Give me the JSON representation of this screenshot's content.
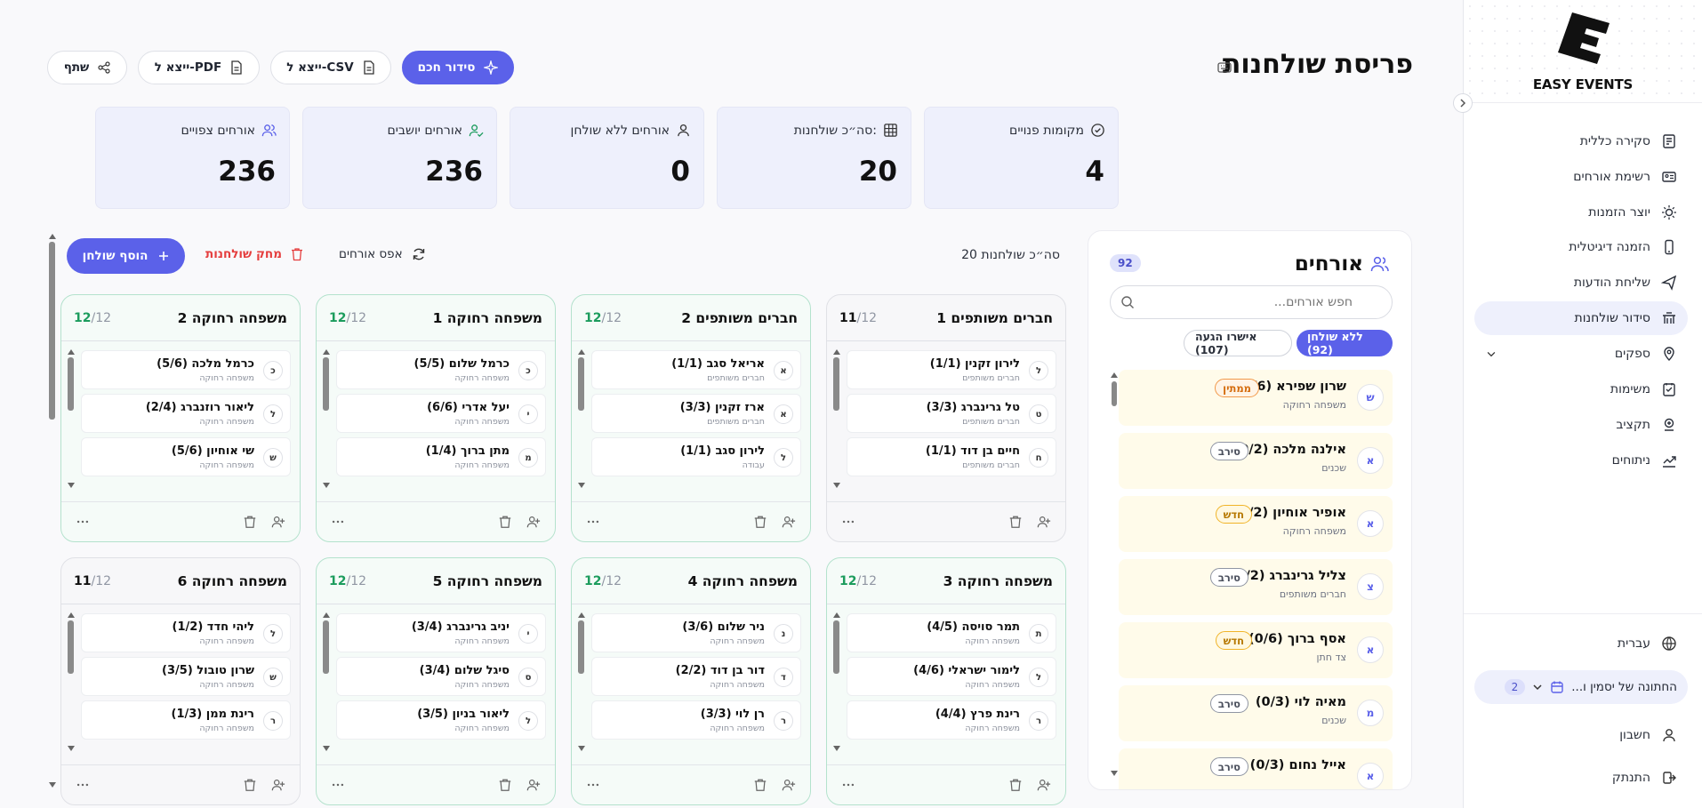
{
  "sidebar": {
    "logo_text": "EASY EVENTS",
    "nav": [
      {
        "label": "סקירה כללית",
        "icon": "dashboard-icon"
      },
      {
        "label": "רשימת אורחים",
        "icon": "guest-list-icon"
      },
      {
        "label": "יוצר הזמנות",
        "icon": "invitation-creator-icon"
      },
      {
        "label": "הזמנה דיגיטלית",
        "icon": "phone-icon"
      },
      {
        "label": "שליחת הודעות",
        "icon": "send-icon"
      },
      {
        "label": "סידור שולחנות",
        "icon": "seating-icon",
        "active": true
      },
      {
        "label": "ספקים",
        "icon": "location-pin-icon",
        "expandable": true
      },
      {
        "label": "משימות",
        "icon": "tasks-icon"
      },
      {
        "label": "תקציב",
        "icon": "budget-icon"
      },
      {
        "label": "ניתוחים",
        "icon": "analytics-icon"
      }
    ],
    "language": "עברית",
    "event_name": "החתונה של יסמין ו...",
    "event_count": "2",
    "account": "חשבון",
    "logout": "התנתק"
  },
  "header": {
    "title": "פריסת שולחנות",
    "smart_arrange": "סידור חכם",
    "export_csv": "ייצא ל-CSV",
    "export_pdf": "ייצא ל-PDF",
    "share": "שתף"
  },
  "stats": [
    {
      "label": "אורחים צפויים",
      "value": "236",
      "icon": "users-icon"
    },
    {
      "label": "אורחים יושבים",
      "value": "236",
      "icon": "seated-users-icon"
    },
    {
      "label": "אורחים ללא שולחן",
      "value": "0",
      "icon": "user-icon"
    },
    {
      "label": "סה״כ שולחנות:",
      "value": "20",
      "icon": "table-grid-icon"
    },
    {
      "label": "מקומות פנויים",
      "value": "4",
      "icon": "check-circle-icon"
    }
  ],
  "guests_panel": {
    "title": "אורחים",
    "count": "92",
    "search_placeholder": "חפש אורחים...",
    "tab_unassigned": "ללא שולחן (92)",
    "tab_rsvp": "אישרו הגעה (107)",
    "items": [
      {
        "initial": "ש",
        "name": "שרון שפירא (0/6)",
        "group": "משפחה רחוקה",
        "tag": "ממתין",
        "tag_type": "wait"
      },
      {
        "initial": "א",
        "name": "אילנה מלכה (0/2)",
        "group": "שכנים",
        "tag": "סירב",
        "tag_type": "ref"
      },
      {
        "initial": "א",
        "name": "אופיר אוחיון (0/2)",
        "group": "משפחה רחוקה",
        "tag": "חדש",
        "tag_type": "new"
      },
      {
        "initial": "צ",
        "name": "צליל גרינברג (0/2)",
        "group": "חברים משותפים",
        "tag": "סירב",
        "tag_type": "ref"
      },
      {
        "initial": "א",
        "name": "אסף ברוך (0/6)",
        "group": "צד חתן",
        "tag": "חדש",
        "tag_type": "new"
      },
      {
        "initial": "מ",
        "name": "מאיה לוי (0/3)",
        "group": "שכנים",
        "tag": "סירב",
        "tag_type": "ref"
      },
      {
        "initial": "א",
        "name": "אייל נחום (0/3)",
        "group": "",
        "tag": "סירב",
        "tag_type": "ref"
      }
    ]
  },
  "tables_toolbar": {
    "total": "סה״כ שולחנות 20",
    "reset": "אפס אורחים",
    "delete": "מחק שולחנות",
    "add": "הוסף שולחן"
  },
  "tables": [
    {
      "name": "חברים משותפים 1",
      "seated": "11",
      "capacity": "/12",
      "full": false,
      "guests": [
        {
          "initial": "ל",
          "name": "לירון זקנין (1/1)",
          "group": "חברים משותפים"
        },
        {
          "initial": "ט",
          "name": "טל גרינברג (3/3)",
          "group": "חברים משותפים"
        },
        {
          "initial": "ח",
          "name": "חיים בן דוד (1/1)",
          "group": "חברים משותפים"
        }
      ]
    },
    {
      "name": "חברים משותפים 2",
      "seated": "12",
      "capacity": "/12",
      "full": true,
      "guests": [
        {
          "initial": "א",
          "name": "אריאל סגב (1/1)",
          "group": "חברים משותפים"
        },
        {
          "initial": "א",
          "name": "ארז זקנין (3/3)",
          "group": "חברים משותפים"
        },
        {
          "initial": "ל",
          "name": "לירון סגב (1/1)",
          "group": "עבודה"
        }
      ]
    },
    {
      "name": "משפחה רחוקה 1",
      "seated": "12",
      "capacity": "/12",
      "full": true,
      "guests": [
        {
          "initial": "כ",
          "name": "כרמל שלום (5/5)",
          "group": "משפחה רחוקה"
        },
        {
          "initial": "י",
          "name": "יעל אדרי (6/6)",
          "group": "משפחה רחוקה"
        },
        {
          "initial": "מ",
          "name": "מתן ברוך (1/4)",
          "group": "משפחה רחוקה"
        }
      ]
    },
    {
      "name": "משפחה רחוקה 2",
      "seated": "12",
      "capacity": "/12",
      "full": true,
      "guests": [
        {
          "initial": "כ",
          "name": "כרמל מלכה (5/6)",
          "group": "משפחה רחוקה"
        },
        {
          "initial": "ל",
          "name": "ליאור רוזנברג (2/4)",
          "group": "משפחה רחוקה"
        },
        {
          "initial": "ש",
          "name": "שי אוחיון (5/6)",
          "group": "משפחה רחוקה"
        }
      ]
    },
    {
      "name": "משפחה רחוקה 3",
      "seated": "12",
      "capacity": "/12",
      "full": true,
      "guests": [
        {
          "initial": "ת",
          "name": "תמר סויסה (4/5)",
          "group": "משפחה רחוקה"
        },
        {
          "initial": "ל",
          "name": "לימור ישראלי (4/6)",
          "group": "משפחה רחוקה"
        },
        {
          "initial": "ר",
          "name": "רינת פרץ (4/4)",
          "group": "משפחה רחוקה"
        }
      ]
    },
    {
      "name": "משפחה רחוקה 4",
      "seated": "12",
      "capacity": "/12",
      "full": true,
      "guests": [
        {
          "initial": "נ",
          "name": "ניר שלום (3/6)",
          "group": "משפחה רחוקה"
        },
        {
          "initial": "ד",
          "name": "דור בן דוד (2/2)",
          "group": "משפחה רחוקה"
        },
        {
          "initial": "ר",
          "name": "רן לוי (3/3)",
          "group": "משפחה רחוקה"
        }
      ]
    },
    {
      "name": "משפחה רחוקה 5",
      "seated": "12",
      "capacity": "/12",
      "full": true,
      "guests": [
        {
          "initial": "י",
          "name": "יניב גרינברג (3/4)",
          "group": "משפחה רחוקה"
        },
        {
          "initial": "ס",
          "name": "סיגל שלום (3/4)",
          "group": "משפחה רחוקה"
        },
        {
          "initial": "ל",
          "name": "ליאור בניון (3/5)",
          "group": "משפחה רחוקה"
        }
      ]
    },
    {
      "name": "משפחה רחוקה 6",
      "seated": "11",
      "capacity": "/12",
      "full": false,
      "guests": [
        {
          "initial": "ל",
          "name": "ליהי חדד (1/2)",
          "group": "משפחה רחוקה"
        },
        {
          "initial": "ש",
          "name": "שרון טובול (3/5)",
          "group": "משפחה רחוקה"
        },
        {
          "initial": "ר",
          "name": "רינת ממן (1/3)",
          "group": "משפחה רחוקה"
        }
      ]
    }
  ]
}
